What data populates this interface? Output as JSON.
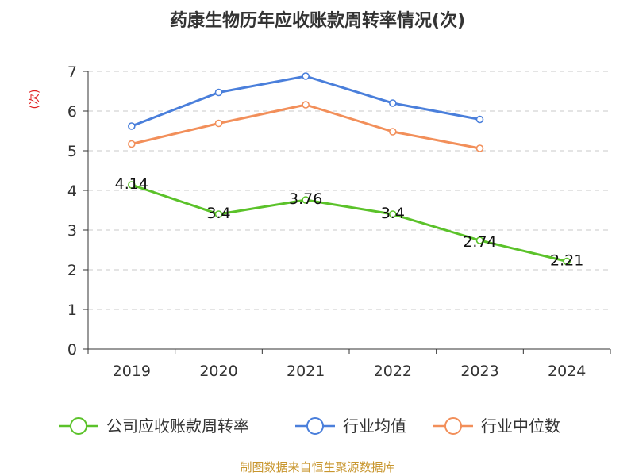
{
  "chart_data": {
    "type": "line",
    "title": "药康生物历年应收账款周转率情况(次)",
    "ylabel": "(次)",
    "categories": [
      "2019",
      "2020",
      "2021",
      "2022",
      "2023",
      "2024"
    ],
    "ylim": [
      0,
      7
    ],
    "yticks": [
      "0",
      "1",
      "2",
      "3",
      "4",
      "5",
      "6",
      "7"
    ],
    "grid": true,
    "legend_position": "bottom",
    "series": [
      {
        "name": "公司应收账款周转率",
        "color": "#5bc22a",
        "values": [
          4.14,
          3.4,
          3.76,
          3.4,
          2.74,
          2.21
        ],
        "labels": [
          "4.14",
          "3.4",
          "3.76",
          "3.4",
          "2.74",
          "2.21"
        ]
      },
      {
        "name": "行业均值",
        "color": "#4a7fdb",
        "values": [
          5.62,
          6.47,
          6.88,
          6.2,
          5.79,
          null
        ]
      },
      {
        "name": "行业中位数",
        "color": "#f28f5a",
        "values": [
          5.17,
          5.69,
          6.16,
          5.48,
          5.06,
          null
        ]
      }
    ]
  },
  "source": "制图数据来自恒生聚源数据库"
}
